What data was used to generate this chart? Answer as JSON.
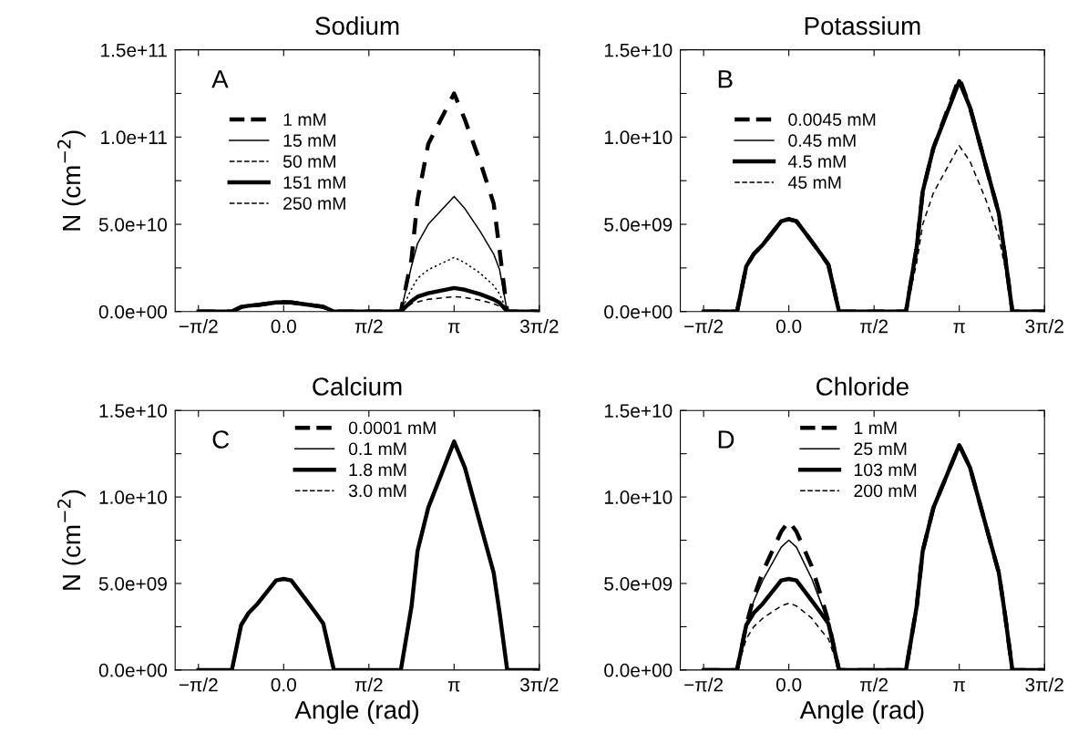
{
  "chart_data": [
    {
      "type": "line",
      "title": "Sodium",
      "ylabel": "N (cm$^{−2}$)",
      "annotations": [
        "A"
      ],
      "legend": "top left",
      "grid": false,
      "xlim": [
        -2.0,
        4.7124
      ],
      "xticks": [
        {
          "value": -1.5708,
          "label": "−π/2"
        },
        {
          "value": 0,
          "label": "0.0"
        },
        {
          "value": 1.5708,
          "label": "π/2"
        },
        {
          "value": 3.1416,
          "label": "π"
        },
        {
          "value": 4.7124,
          "label": "3π/2"
        }
      ],
      "ylim": [
        0,
        150000000000.0
      ],
      "yticks": [
        {
          "value": 0,
          "label": "0.0e+00"
        },
        {
          "value": 25000000000.0,
          "label": null
        },
        {
          "value": 50000000000.0,
          "label": "5.0e+10"
        },
        {
          "value": 75000000000.0,
          "label": null
        },
        {
          "value": 100000000000.0,
          "label": "1.0e+11"
        },
        {
          "value": 125000000000.0,
          "label": null
        },
        {
          "value": 150000000000.0,
          "label": "1.5e+11"
        }
      ],
      "x": [
        -1.5708,
        -0.954,
        -0.785,
        -0.645,
        -0.477,
        -0.14,
        0,
        0.14,
        0.42,
        0.59,
        0.73,
        0.925,
        2.16,
        2.356,
        2.468,
        2.665,
        3.1416,
        3.34,
        3.62,
        3.87,
        3.98,
        4.12,
        4.69
      ],
      "series": [
        {
          "name": "1 mM",
          "color": "#000000",
          "line_style": "dashed",
          "values": [
            0,
            0,
            2600000000.0,
            3300000000.0,
            3800000000.0,
            5200000000.0,
            5300000000.0,
            5200000000.0,
            4000000000.0,
            3300000000.0,
            2700000000.0,
            0,
            0,
            30000000000.0,
            64000000000.0,
            96000000000.0,
            125000000000.0,
            110000000000.0,
            86000000000.0,
            62000000000.0,
            35000000000.0,
            0,
            0
          ]
        },
        {
          "name": "15 mM",
          "color": "#000000",
          "line_style": "solid",
          "values": [
            0,
            0,
            2600000000.0,
            3300000000.0,
            3800000000.0,
            5200000000.0,
            5300000000.0,
            5200000000.0,
            4000000000.0,
            3300000000.0,
            2700000000.0,
            0,
            0,
            26000000000.0,
            39000000000.0,
            50000000000.0,
            66000000000.0,
            59000000000.0,
            46000000000.0,
            33000000000.0,
            24000000000.0,
            0,
            0
          ]
        },
        {
          "name": "50 mM",
          "color": "#000000",
          "line_style": "dotted",
          "values": [
            0,
            0,
            2600000000.0,
            3300000000.0,
            3800000000.0,
            5200000000.0,
            5300000000.0,
            5200000000.0,
            4000000000.0,
            3300000000.0,
            2700000000.0,
            0,
            0,
            13000000000.0,
            19000000000.0,
            24000000000.0,
            31000000000.0,
            28000000000.0,
            22000000000.0,
            15000000000.0,
            10000000000.0,
            0,
            0
          ]
        },
        {
          "name": "151 mM",
          "color": "#000000",
          "line_style": "solid",
          "values": [
            0,
            0,
            2600000000.0,
            3300000000.0,
            3800000000.0,
            5200000000.0,
            5300000000.0,
            5200000000.0,
            4000000000.0,
            3300000000.0,
            2700000000.0,
            0,
            0,
            6000000000.0,
            8500000000.0,
            10500000000.0,
            13500000000.0,
            12500000000.0,
            10000000000.0,
            7000000000.0,
            5000000000.0,
            0,
            0
          ]
        },
        {
          "name": "250 mM",
          "color": "#000000",
          "line_style": "dashed",
          "values": [
            0,
            0,
            2600000000.0,
            3300000000.0,
            3800000000.0,
            5200000000.0,
            5300000000.0,
            5200000000.0,
            4000000000.0,
            3300000000.0,
            2700000000.0,
            0,
            0,
            4500000000.0,
            5500000000.0,
            7000000000.0,
            8500000000.0,
            8000000000.0,
            6500000000.0,
            4500000000.0,
            3000000000.0,
            0,
            0
          ]
        }
      ]
    },
    {
      "type": "line",
      "title": "Potassium",
      "annotations": [
        "B"
      ],
      "legend": "top left",
      "grid": false,
      "xlim": [
        -2.0,
        4.7124
      ],
      "xticks": [
        {
          "value": -1.5708,
          "label": "−π/2"
        },
        {
          "value": 0,
          "label": "0.0"
        },
        {
          "value": 1.5708,
          "label": "π/2"
        },
        {
          "value": 3.1416,
          "label": "π"
        },
        {
          "value": 4.7124,
          "label": "3π/2"
        }
      ],
      "ylim": [
        0,
        15000000000.0
      ],
      "yticks": [
        {
          "value": 0,
          "label": "0.0e+00"
        },
        {
          "value": 2500000000.0,
          "label": null
        },
        {
          "value": 5000000000.0,
          "label": "5.0e+09"
        },
        {
          "value": 7500000000.0,
          "label": null
        },
        {
          "value": 10000000000.0,
          "label": "1.0e+10"
        },
        {
          "value": 12500000000.0,
          "label": null
        },
        {
          "value": 15000000000.0,
          "label": "1.5e+10"
        }
      ],
      "x": [
        -1.5708,
        -0.954,
        -0.785,
        -0.645,
        -0.477,
        -0.14,
        0,
        0.14,
        0.42,
        0.59,
        0.73,
        0.925,
        2.16,
        2.356,
        2.468,
        2.665,
        3.1416,
        3.34,
        3.62,
        3.87,
        3.98,
        4.12,
        4.69
      ],
      "series": [
        {
          "name": "0.0045 mM",
          "color": "#000000",
          "line_style": "dashed",
          "values": [
            0,
            0,
            2590000000.0,
            3300000000.0,
            3840000000.0,
            5180000000.0,
            5300000000.0,
            5180000000.0,
            4020000000.0,
            3300000000.0,
            2680000000.0,
            0,
            0,
            3660000000.0,
            6880000000.0,
            9380000000.0,
            13400000000.0,
            11700000000.0,
            8480000000.0,
            5630000000.0,
            3300000000.0,
            0,
            0
          ]
        },
        {
          "name": "0.45 mM",
          "color": "#000000",
          "line_style": "solid",
          "values": [
            null,
            null,
            null,
            null,
            null,
            null,
            null,
            null,
            null,
            null,
            null,
            null,
            null,
            null,
            null,
            null,
            null,
            null,
            null,
            null,
            null,
            null,
            null
          ]
        },
        {
          "name": "4.5 mM",
          "color": "#000000",
          "line_style": "solid",
          "values": [
            0,
            0,
            2590000000.0,
            3300000000.0,
            3840000000.0,
            5180000000.0,
            5300000000.0,
            5180000000.0,
            4020000000.0,
            3300000000.0,
            2680000000.0,
            0,
            0,
            3660000000.0,
            6880000000.0,
            9380000000.0,
            13200000000.0,
            11700000000.0,
            8480000000.0,
            5630000000.0,
            3300000000.0,
            0,
            0
          ]
        },
        {
          "name": "45 mM",
          "color": "#000000",
          "line_style": "dashed",
          "values": [
            0,
            0,
            2590000000.0,
            3300000000.0,
            3840000000.0,
            5180000000.0,
            5300000000.0,
            5180000000.0,
            4020000000.0,
            3300000000.0,
            2680000000.0,
            0,
            0,
            2800000000.0,
            5000000000.0,
            6800000000.0,
            9500000000.0,
            8600000000.0,
            6500000000.0,
            4300000000.0,
            2600000000.0,
            0,
            0
          ]
        }
      ]
    },
    {
      "type": "line",
      "title": "Calcium",
      "xlabel": "Angle (rad)",
      "ylabel": "N (cm$^{−2}$)",
      "annotations": [
        "C"
      ],
      "legend": "top",
      "grid": false,
      "xlim": [
        -2.0,
        4.7124
      ],
      "xticks": [
        {
          "value": -1.5708,
          "label": "−π/2"
        },
        {
          "value": 0,
          "label": "0.0"
        },
        {
          "value": 1.5708,
          "label": "π/2"
        },
        {
          "value": 3.1416,
          "label": "π"
        },
        {
          "value": 4.7124,
          "label": "3π/2"
        }
      ],
      "ylim": [
        0,
        15000000000.0
      ],
      "yticks": [
        {
          "value": 0,
          "label": "0.0e+00"
        },
        {
          "value": 2500000000.0,
          "label": null
        },
        {
          "value": 5000000000.0,
          "label": "5.0e+09"
        },
        {
          "value": 7500000000.0,
          "label": null
        },
        {
          "value": 10000000000.0,
          "label": "1.0e+10"
        },
        {
          "value": 12500000000.0,
          "label": null
        },
        {
          "value": 15000000000.0,
          "label": "1.5e+10"
        }
      ],
      "x": [
        -1.5708,
        -0.954,
        -0.785,
        -0.645,
        -0.477,
        -0.14,
        0,
        0.14,
        0.42,
        0.59,
        0.73,
        0.925,
        2.16,
        2.356,
        2.468,
        2.665,
        3.1416,
        3.34,
        3.62,
        3.87,
        3.98,
        4.12,
        4.69
      ],
      "series": [
        {
          "name": "0.0001 mM",
          "color": "#000000",
          "line_style": "dashed",
          "values": [
            null,
            null,
            null,
            null,
            null,
            null,
            null,
            null,
            null,
            null,
            null,
            null,
            null,
            null,
            null,
            null,
            null,
            null,
            null,
            null,
            null,
            null,
            null
          ]
        },
        {
          "name": "0.1 mM",
          "color": "#000000",
          "line_style": "solid",
          "values": [
            null,
            null,
            null,
            null,
            null,
            null,
            null,
            null,
            null,
            null,
            null,
            null,
            null,
            null,
            null,
            null,
            null,
            null,
            null,
            null,
            null,
            null,
            null
          ]
        },
        {
          "name": "1.8 mM",
          "color": "#000000",
          "line_style": "solid",
          "values": [
            0,
            0,
            2590000000.0,
            3300000000.0,
            3840000000.0,
            5180000000.0,
            5260000000.0,
            5180000000.0,
            4020000000.0,
            3300000000.0,
            2680000000.0,
            0,
            0,
            3660000000.0,
            6880000000.0,
            9380000000.0,
            13200000000.0,
            11700000000.0,
            8480000000.0,
            5630000000.0,
            3300000000.0,
            0,
            0
          ]
        },
        {
          "name": "3.0 mM",
          "color": "#000000",
          "line_style": "dashed",
          "values": [
            null,
            null,
            null,
            null,
            null,
            null,
            null,
            null,
            null,
            null,
            null,
            null,
            null,
            null,
            null,
            null,
            null,
            null,
            null,
            null,
            null,
            null,
            null
          ]
        }
      ]
    },
    {
      "type": "line",
      "title": "Chloride",
      "xlabel": "Angle (rad)",
      "annotations": [
        "D"
      ],
      "legend": "top",
      "grid": false,
      "xlim": [
        -2.0,
        4.7124
      ],
      "xticks": [
        {
          "value": -1.5708,
          "label": "−π/2"
        },
        {
          "value": 0,
          "label": "0.0"
        },
        {
          "value": 1.5708,
          "label": "π/2"
        },
        {
          "value": 3.1416,
          "label": "π"
        },
        {
          "value": 4.7124,
          "label": "3π/2"
        }
      ],
      "ylim": [
        0,
        15000000000.0
      ],
      "yticks": [
        {
          "value": 0,
          "label": "0.0e+00"
        },
        {
          "value": 2500000000.0,
          "label": null
        },
        {
          "value": 5000000000.0,
          "label": "5.0e+09"
        },
        {
          "value": 7500000000.0,
          "label": null
        },
        {
          "value": 10000000000.0,
          "label": "1.0e+10"
        },
        {
          "value": 12500000000.0,
          "label": null
        },
        {
          "value": 15000000000.0,
          "label": "1.5e+10"
        }
      ],
      "x": [
        -1.5708,
        -0.954,
        -0.785,
        -0.645,
        -0.477,
        -0.14,
        0,
        0.14,
        0.42,
        0.59,
        0.73,
        0.925,
        2.16,
        2.356,
        2.468,
        2.665,
        3.1416,
        3.34,
        3.62,
        3.87,
        3.98,
        4.12,
        4.69
      ],
      "series": [
        {
          "name": "1 mM",
          "color": "#000000",
          "line_style": "dashed",
          "values": [
            0,
            0,
            2600000000.0,
            4200000000.0,
            5700000000.0,
            8000000000.0,
            8600000000.0,
            8000000000.0,
            6000000000.0,
            4300000000.0,
            2800000000.0,
            0,
            0,
            3660000000.0,
            6880000000.0,
            9380000000.0,
            13000000000.0,
            11700000000.0,
            8480000000.0,
            5630000000.0,
            3300000000.0,
            0,
            0
          ]
        },
        {
          "name": "25 mM",
          "color": "#000000",
          "line_style": "solid",
          "values": [
            0,
            0,
            2600000000.0,
            4000000000.0,
            5200000000.0,
            7100000000.0,
            7500000000.0,
            7100000000.0,
            5300000000.0,
            3900000000.0,
            2700000000.0,
            0,
            0,
            3660000000.0,
            6880000000.0,
            9380000000.0,
            13000000000.0,
            11700000000.0,
            8480000000.0,
            5630000000.0,
            3300000000.0,
            0,
            0
          ]
        },
        {
          "name": "103 mM",
          "color": "#000000",
          "line_style": "solid",
          "values": [
            0,
            0,
            2590000000.0,
            3300000000.0,
            3840000000.0,
            5180000000.0,
            5260000000.0,
            5180000000.0,
            4020000000.0,
            3300000000.0,
            2680000000.0,
            0,
            0,
            3660000000.0,
            6880000000.0,
            9380000000.0,
            13000000000.0,
            11700000000.0,
            8480000000.0,
            5630000000.0,
            3300000000.0,
            0,
            0
          ]
        },
        {
          "name": "200 mM",
          "color": "#000000",
          "line_style": "dashed",
          "values": [
            0,
            0,
            1800000000.0,
            2500000000.0,
            3000000000.0,
            3700000000.0,
            3860000000.0,
            3700000000.0,
            3000000000.0,
            2300000000.0,
            1800000000.0,
            0,
            0,
            3660000000.0,
            6880000000.0,
            9380000000.0,
            13000000000.0,
            11700000000.0,
            8480000000.0,
            5630000000.0,
            3300000000.0,
            0,
            0
          ]
        }
      ]
    }
  ]
}
